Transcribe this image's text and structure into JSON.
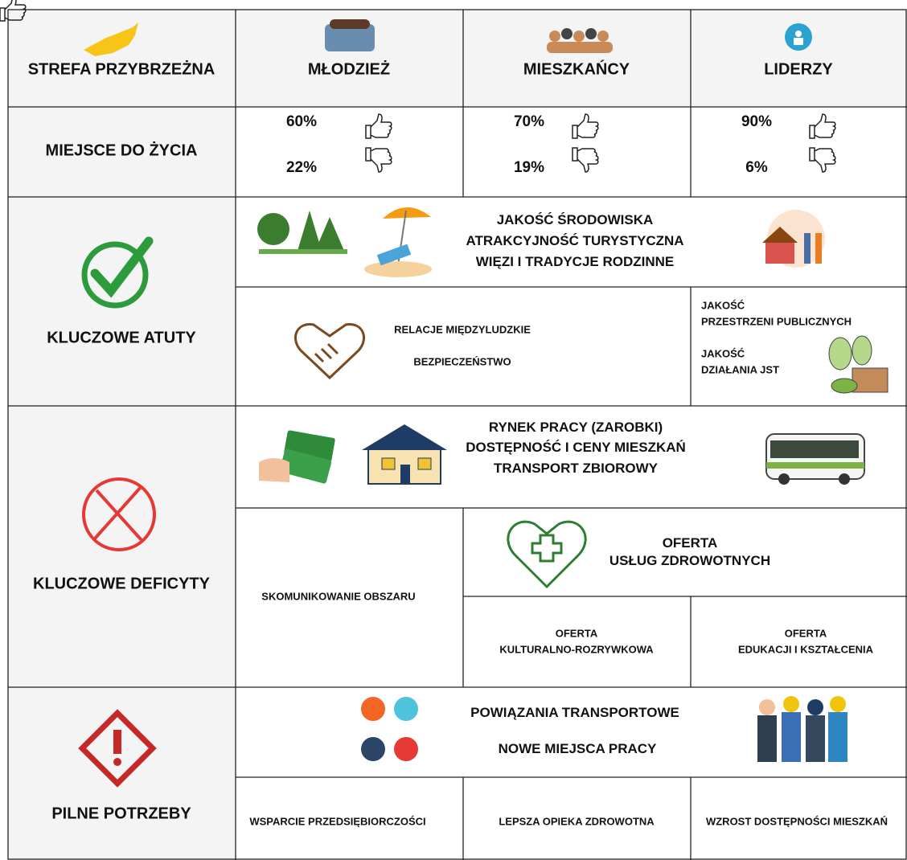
{
  "header": {
    "region": "STREFA PRZYBRZEŻNA",
    "groups": [
      "MŁODZIEŻ",
      "MIESZKAŃCY",
      "LIDERZY"
    ]
  },
  "rating": {
    "label": "MIEJSCE DO ŻYCIA",
    "positive": [
      "60%",
      "70%",
      "90%"
    ],
    "negative": [
      "22%",
      "19%",
      "6%"
    ]
  },
  "strengths": {
    "label": "KLUCZOWE ATUTY",
    "top": [
      "JAKOŚĆ ŚRODOWISKA",
      "ATRAKCYJNOŚĆ TURYSTYCZNA",
      "WIĘZI I TRADYCJE RODZINNE"
    ],
    "middle": [
      "RELACJE MIĘDZYLUDZKIE",
      "BEZPIECZEŃSTWO"
    ],
    "public_space": [
      "JAKOŚĆ",
      "PRZESTRZENI PUBLICZNYCH"
    ],
    "local_government": [
      "JAKOŚĆ",
      "DZIAŁANIA JST"
    ]
  },
  "deficits": {
    "label": "KLUCZOWE DEFICYTY",
    "top": [
      "RYNEK PRACY (ZAROBKI)",
      "DOSTĘPNOŚĆ I CENY MIESZKAŃ",
      "TRANSPORT ZBIOROWY"
    ],
    "communication": "SKOMUNIKOWANIE OBSZARU",
    "health": [
      "OFERTA",
      "USŁUG ZDROWOTNYCH"
    ],
    "culture": [
      "OFERTA",
      "KULTURALNO-ROZRYWKOWA"
    ],
    "education": [
      "OFERTA",
      "EDUKACJI I KSZTAŁCENIA"
    ]
  },
  "needs": {
    "label": "PILNE POTRZEBY",
    "top": [
      "POWIĄZANIA TRANSPORTOWE",
      "NOWE MIEJSCA PRACY"
    ],
    "bottom": [
      "WSPARCIE PRZEDSIĘBIORCZOŚCI",
      "LEPSZA OPIEKA ZDROWOTNA",
      "WZROST DOSTĘPNOŚCI MIESZKAŃ"
    ]
  }
}
